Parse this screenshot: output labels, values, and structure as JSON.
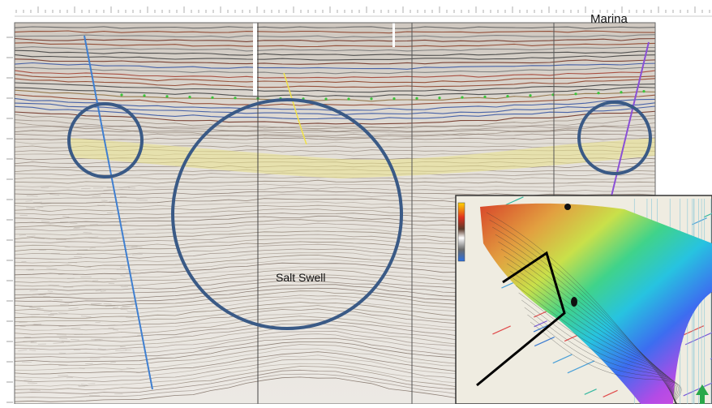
{
  "panel": {
    "well_label": "Marina",
    "feature_label": "Salt Swell"
  },
  "colors": {
    "background": "#ffffff",
    "seismic_base": "#e6e3dd",
    "horizon_yellow": "#e9e28a",
    "circle_stroke": "#3a5a86",
    "well_blue": "#3f7fd0",
    "well_purple": "#8a4fd6",
    "map_background": "#efece1",
    "map_frame": "#333333"
  },
  "icons": {
    "north_arrow": "green-up-arrow-icon",
    "color_scale": "color-scale-bar"
  }
}
